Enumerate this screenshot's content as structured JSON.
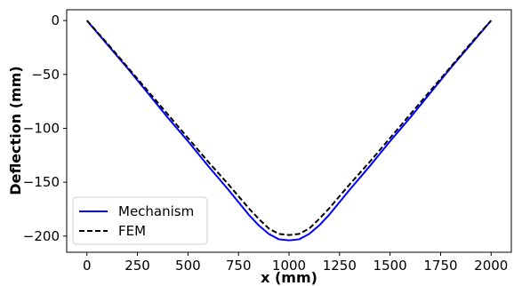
{
  "chart_data": {
    "type": "line",
    "title": "",
    "xlabel": "x (mm)",
    "ylabel": "Deflection (mm)",
    "xlim": [
      -100,
      2100
    ],
    "ylim": [
      -215,
      10
    ],
    "xticks": [
      0,
      250,
      500,
      750,
      1000,
      1250,
      1500,
      1750,
      2000
    ],
    "xtick_labels": [
      "0",
      "250",
      "500",
      "750",
      "1000",
      "1250",
      "1500",
      "1750",
      "2000"
    ],
    "yticks": [
      0,
      -50,
      -100,
      -150,
      -200
    ],
    "ytick_labels": [
      "0",
      "−50",
      "−100",
      "−150",
      "−200"
    ],
    "grid": false,
    "legend_position": "lower-left",
    "series": [
      {
        "name": "Mechanism",
        "color": "#0000ff",
        "style": "solid",
        "x": [
          0,
          100,
          200,
          300,
          400,
          500,
          600,
          700,
          800,
          850,
          900,
          950,
          1000,
          1050,
          1100,
          1150,
          1200,
          1300,
          1400,
          1500,
          1600,
          1700,
          1800,
          1900,
          2000
        ],
        "y": [
          0,
          -22,
          -44,
          -67,
          -90,
          -112,
          -135,
          -157,
          -180,
          -190,
          -198,
          -203,
          -204,
          -203,
          -198,
          -190,
          -180,
          -157,
          -135,
          -112,
          -90,
          -67,
          -44,
          -22,
          0
        ]
      },
      {
        "name": "FEM",
        "color": "#000000",
        "style": "dashed",
        "x": [
          0,
          100,
          200,
          300,
          400,
          500,
          600,
          700,
          800,
          850,
          900,
          950,
          1000,
          1050,
          1100,
          1150,
          1200,
          1300,
          1400,
          1500,
          1600,
          1700,
          1800,
          1900,
          2000
        ],
        "y": [
          0,
          -21,
          -43,
          -65,
          -87,
          -109,
          -131,
          -152,
          -174,
          -184,
          -193,
          -198,
          -199,
          -198,
          -193,
          -184,
          -174,
          -152,
          -131,
          -109,
          -87,
          -65,
          -43,
          -21,
          0
        ]
      }
    ]
  }
}
